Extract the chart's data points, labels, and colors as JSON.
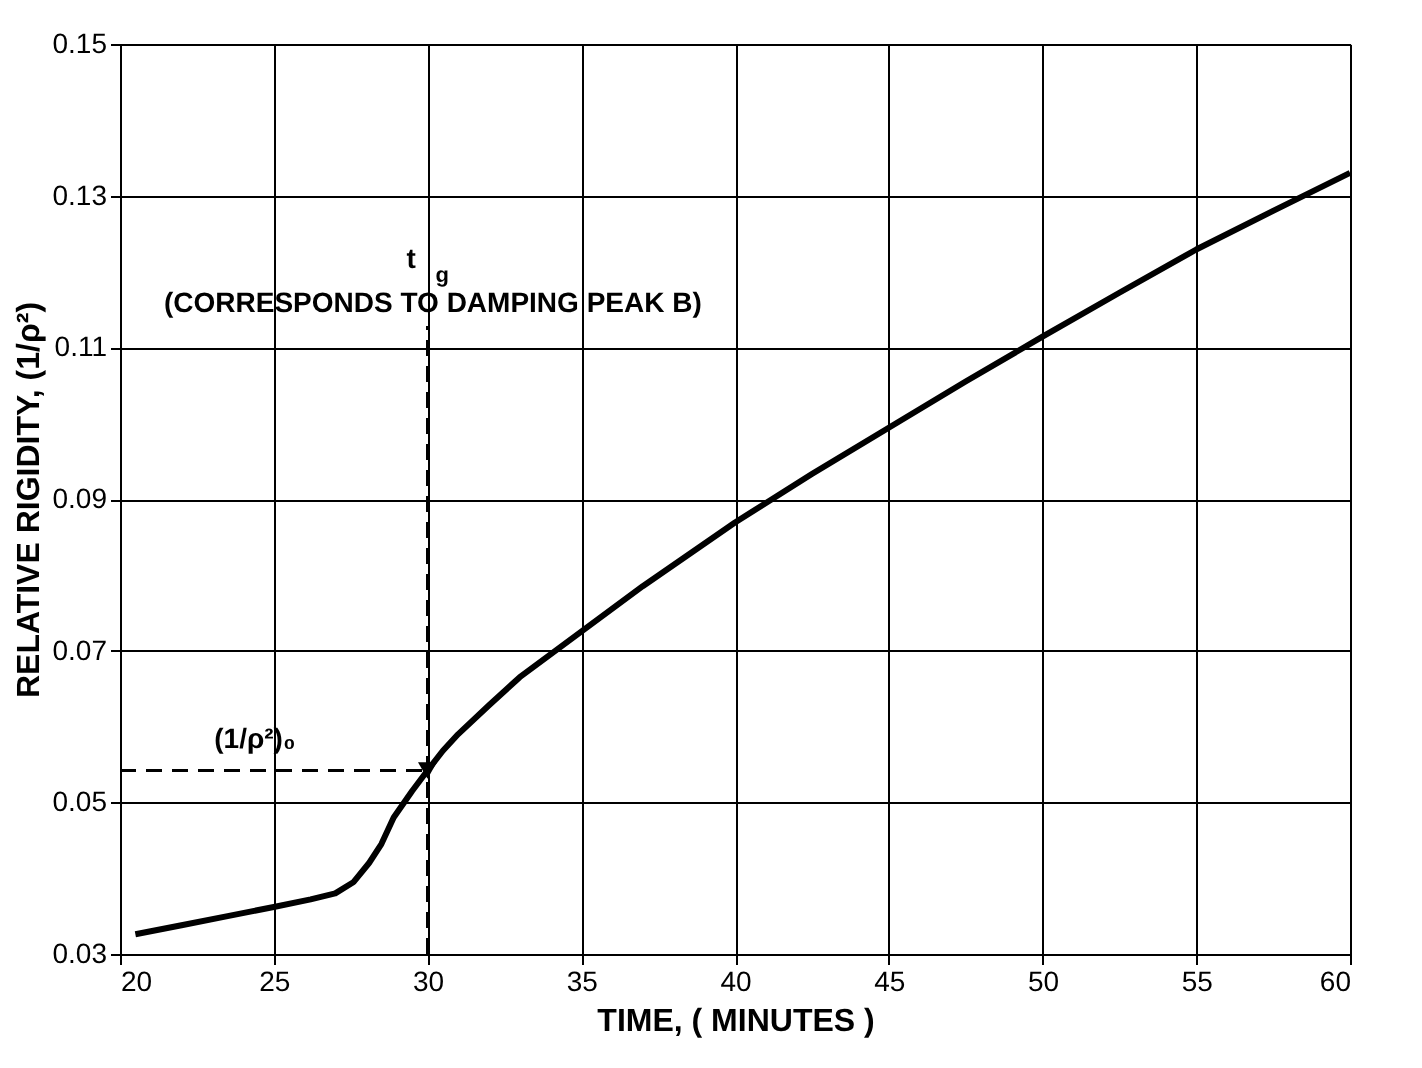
{
  "chart_data": {
    "type": "line",
    "xlabel": "TIME, ( MINUTES )",
    "ylabel": "RELATIVE RIGIDITY, (1/ρ²)",
    "x": [
      20.5,
      22,
      23.5,
      25,
      26.2,
      27,
      27.6,
      28.1,
      28.5,
      28.9,
      29.5,
      30,
      30.5,
      31,
      32,
      33,
      35,
      37,
      40,
      42.5,
      45,
      47.5,
      50,
      52.5,
      55,
      57.5,
      60
    ],
    "series": [
      {
        "color": "#000000",
        "values": [
          0.0326,
          0.0338,
          0.035,
          0.0362,
          0.0372,
          0.038,
          0.0395,
          0.042,
          0.0445,
          0.048,
          0.0515,
          0.0542,
          0.0568,
          0.059,
          0.0628,
          0.0665,
          0.0725,
          0.0785,
          0.0869,
          0.0933,
          0.0994,
          0.1055,
          0.1114,
          0.1172,
          0.1229,
          0.128,
          0.133
        ]
      }
    ],
    "xlim": [
      20,
      60
    ],
    "xticks": [
      20,
      25,
      30,
      35,
      40,
      45,
      50,
      55,
      60
    ],
    "ylim": [
      0.03,
      0.15
    ],
    "yticks": [
      0.03,
      0.05,
      0.07,
      0.09,
      0.11,
      0.13,
      0.15
    ],
    "grid": true,
    "line_style": "solid",
    "marker": "none",
    "ref_lines": [
      {
        "axis": "x",
        "value": 30,
        "label": "t$_{g}$\n(CORRESPONDS TO DAMPING PEAK B)",
        "line_style": "dashed",
        "color": "#000000"
      },
      {
        "axis": "y",
        "value": 0.0542,
        "label": "(1/ρ²)₀",
        "line_style": "dashed",
        "color": "#000000"
      }
    ]
  }
}
